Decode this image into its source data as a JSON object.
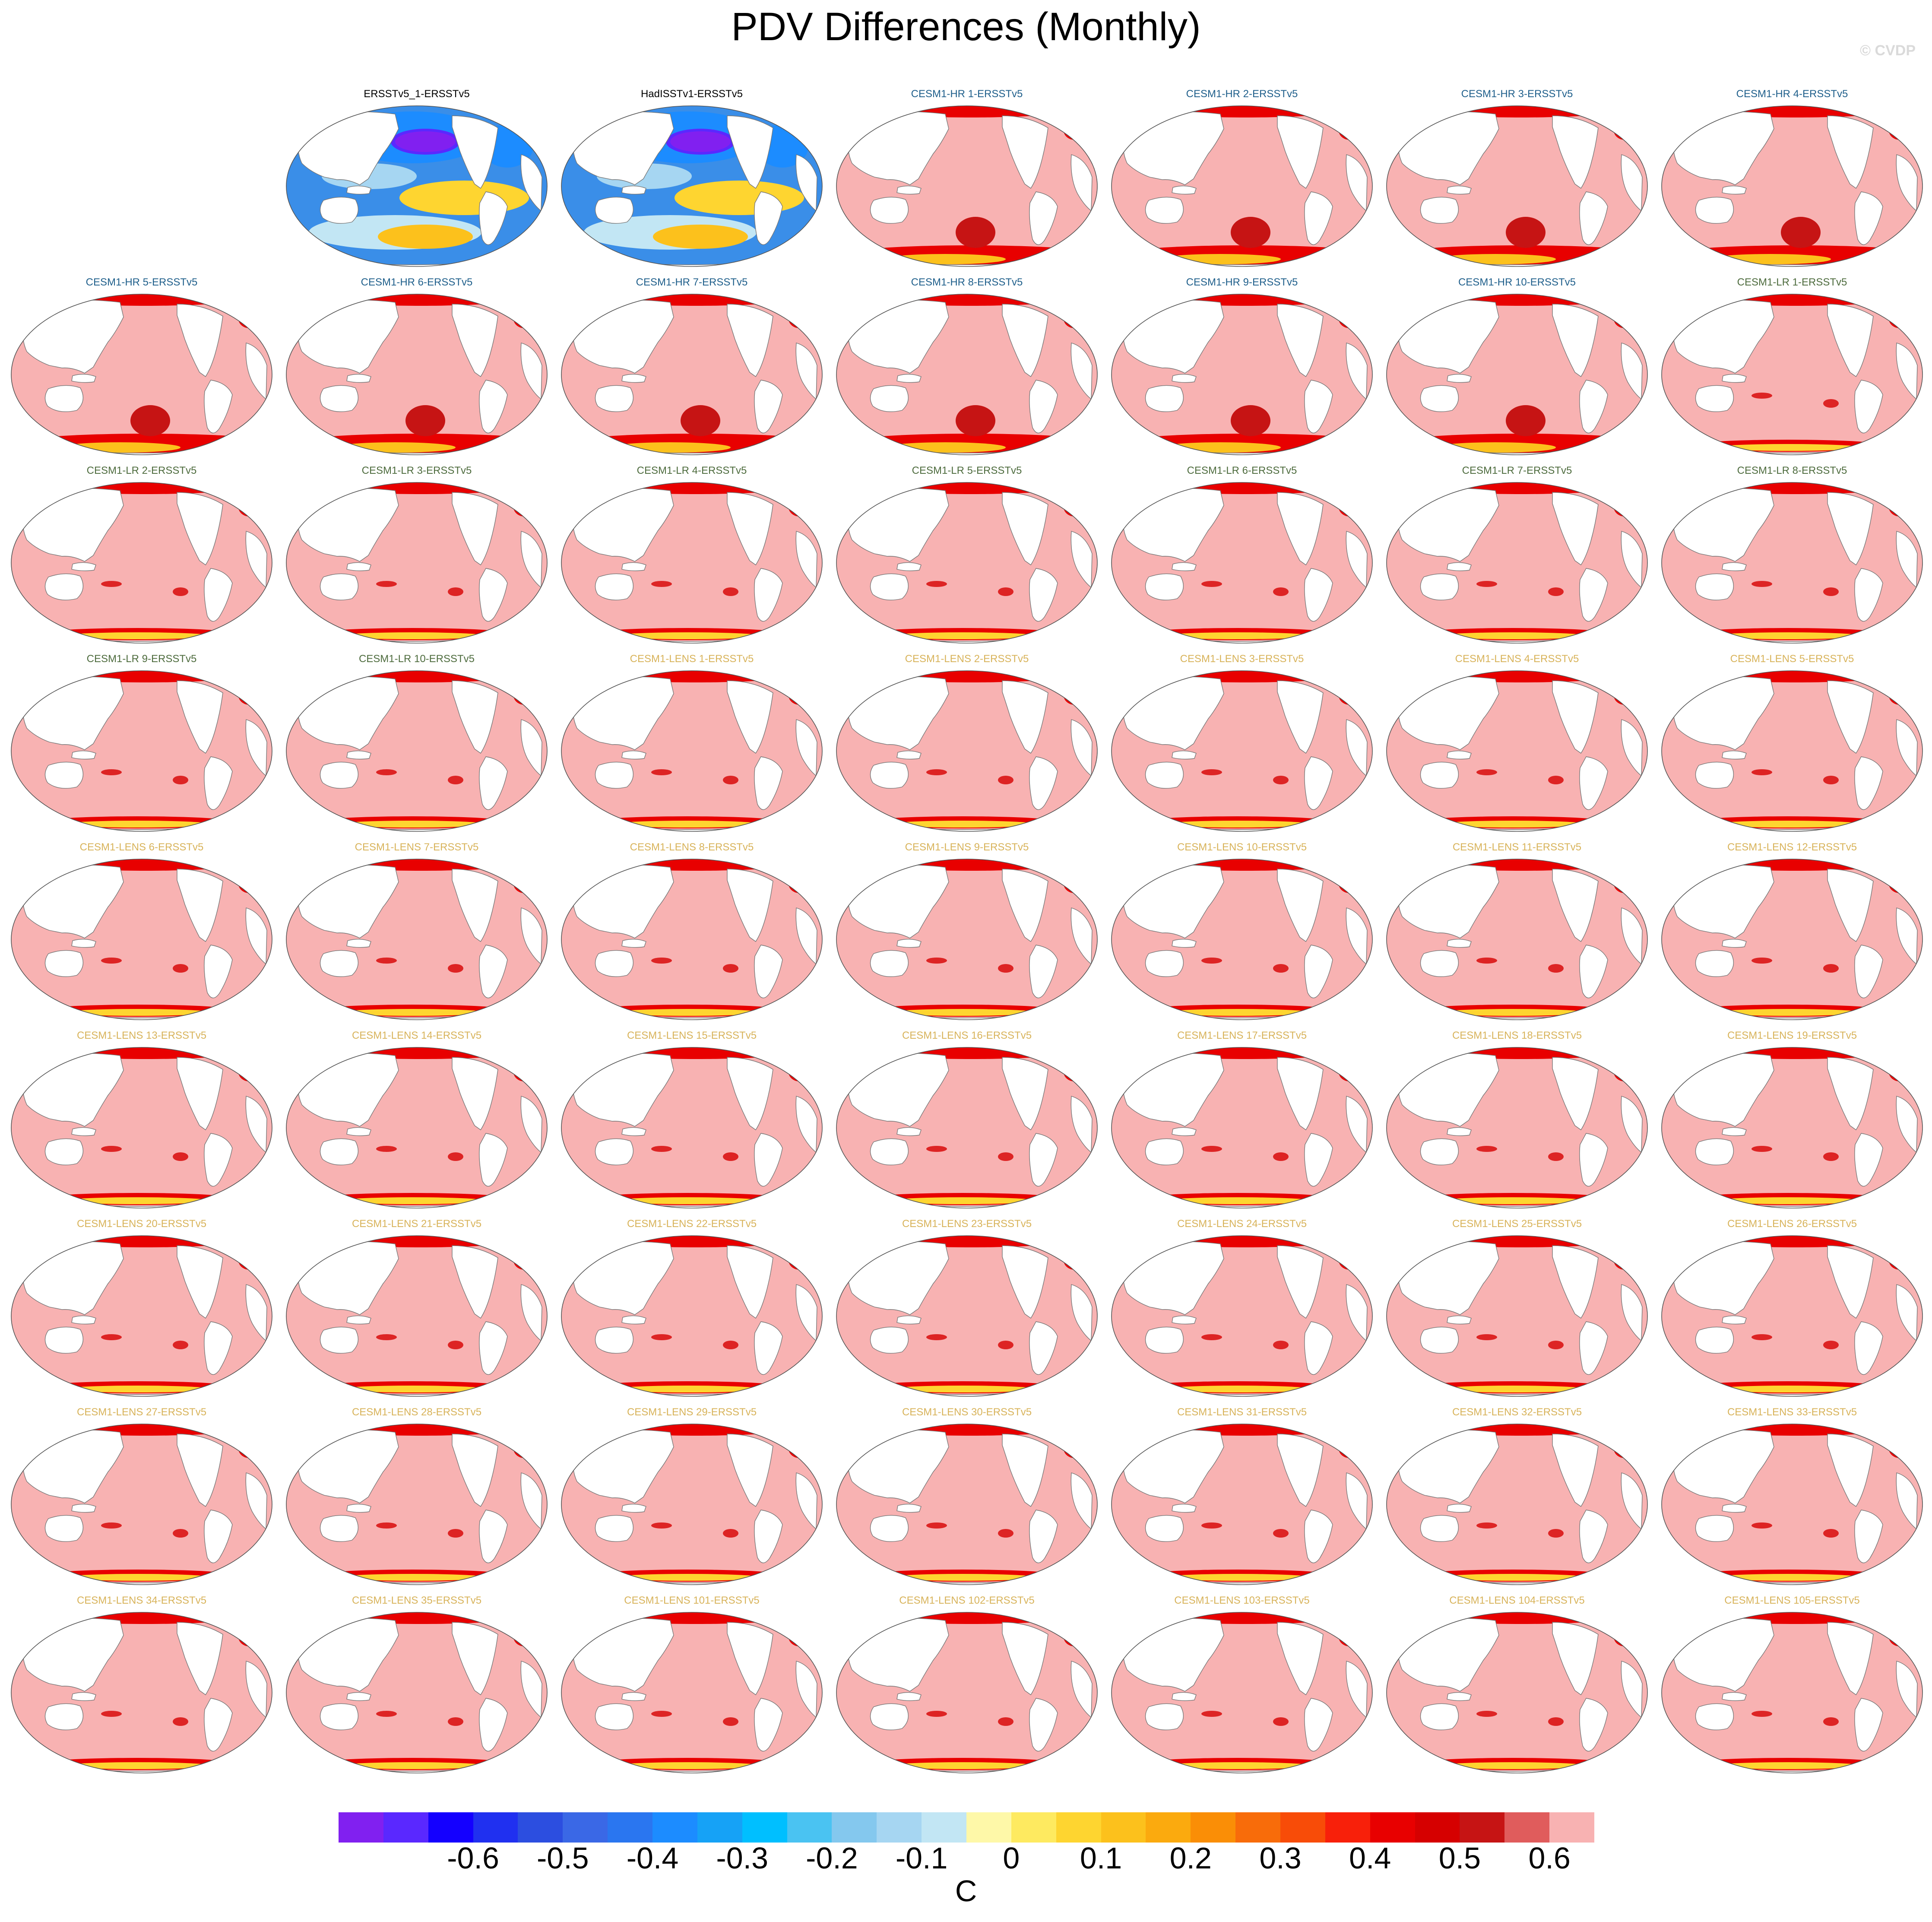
{
  "page": {
    "title": "PDV Differences (Monthly)",
    "credit": "© CVDP"
  },
  "colors": {
    "obs": "#000000",
    "hr": "#1f5f8b",
    "lr": "#4d6b3d",
    "lens": "#d8b35a"
  },
  "panels": [
    {
      "label": "ERSSTv5_1-ERSSTv5",
      "group": "obs"
    },
    {
      "label": "HadISSTv1-ERSSTv5",
      "group": "obs"
    },
    {
      "label": "CESM1-HR 1-ERSSTv5",
      "group": "hr"
    },
    {
      "label": "CESM1-HR 2-ERSSTv5",
      "group": "hr"
    },
    {
      "label": "CESM1-HR 3-ERSSTv5",
      "group": "hr"
    },
    {
      "label": "CESM1-HR 4-ERSSTv5",
      "group": "hr"
    },
    {
      "label": "CESM1-HR 5-ERSSTv5",
      "group": "hr"
    },
    {
      "label": "CESM1-HR 6-ERSSTv5",
      "group": "hr"
    },
    {
      "label": "CESM1-HR 7-ERSSTv5",
      "group": "hr"
    },
    {
      "label": "CESM1-HR 8-ERSSTv5",
      "group": "hr"
    },
    {
      "label": "CESM1-HR 9-ERSSTv5",
      "group": "hr"
    },
    {
      "label": "CESM1-HR 10-ERSSTv5",
      "group": "hr"
    },
    {
      "label": "CESM1-LR 1-ERSSTv5",
      "group": "lr"
    },
    {
      "label": "CESM1-LR 2-ERSSTv5",
      "group": "lr"
    },
    {
      "label": "CESM1-LR 3-ERSSTv5",
      "group": "lr"
    },
    {
      "label": "CESM1-LR 4-ERSSTv5",
      "group": "lr"
    },
    {
      "label": "CESM1-LR 5-ERSSTv5",
      "group": "lr"
    },
    {
      "label": "CESM1-LR 6-ERSSTv5",
      "group": "lr"
    },
    {
      "label": "CESM1-LR 7-ERSSTv5",
      "group": "lr"
    },
    {
      "label": "CESM1-LR 8-ERSSTv5",
      "group": "lr"
    },
    {
      "label": "CESM1-LR 9-ERSSTv5",
      "group": "lr"
    },
    {
      "label": "CESM1-LR 10-ERSSTv5",
      "group": "lr"
    },
    {
      "label": "CESM1-LENS 1-ERSSTv5",
      "group": "lens"
    },
    {
      "label": "CESM1-LENS 2-ERSSTv5",
      "group": "lens"
    },
    {
      "label": "CESM1-LENS 3-ERSSTv5",
      "group": "lens"
    },
    {
      "label": "CESM1-LENS 4-ERSSTv5",
      "group": "lens"
    },
    {
      "label": "CESM1-LENS 5-ERSSTv5",
      "group": "lens"
    },
    {
      "label": "CESM1-LENS 6-ERSSTv5",
      "group": "lens"
    },
    {
      "label": "CESM1-LENS 7-ERSSTv5",
      "group": "lens"
    },
    {
      "label": "CESM1-LENS 8-ERSSTv5",
      "group": "lens"
    },
    {
      "label": "CESM1-LENS 9-ERSSTv5",
      "group": "lens"
    },
    {
      "label": "CESM1-LENS 10-ERSSTv5",
      "group": "lens"
    },
    {
      "label": "CESM1-LENS 11-ERSSTv5",
      "group": "lens"
    },
    {
      "label": "CESM1-LENS 12-ERSSTv5",
      "group": "lens"
    },
    {
      "label": "CESM1-LENS 13-ERSSTv5",
      "group": "lens"
    },
    {
      "label": "CESM1-LENS 14-ERSSTv5",
      "group": "lens"
    },
    {
      "label": "CESM1-LENS 15-ERSSTv5",
      "group": "lens"
    },
    {
      "label": "CESM1-LENS 16-ERSSTv5",
      "group": "lens"
    },
    {
      "label": "CESM1-LENS 17-ERSSTv5",
      "group": "lens"
    },
    {
      "label": "CESM1-LENS 18-ERSSTv5",
      "group": "lens"
    },
    {
      "label": "CESM1-LENS 19-ERSSTv5",
      "group": "lens"
    },
    {
      "label": "CESM1-LENS 20-ERSSTv5",
      "group": "lens"
    },
    {
      "label": "CESM1-LENS 21-ERSSTv5",
      "group": "lens"
    },
    {
      "label": "CESM1-LENS 22-ERSSTv5",
      "group": "lens"
    },
    {
      "label": "CESM1-LENS 23-ERSSTv5",
      "group": "lens"
    },
    {
      "label": "CESM1-LENS 24-ERSSTv5",
      "group": "lens"
    },
    {
      "label": "CESM1-LENS 25-ERSSTv5",
      "group": "lens"
    },
    {
      "label": "CESM1-LENS 26-ERSSTv5",
      "group": "lens"
    },
    {
      "label": "CESM1-LENS 27-ERSSTv5",
      "group": "lens"
    },
    {
      "label": "CESM1-LENS 28-ERSSTv5",
      "group": "lens"
    },
    {
      "label": "CESM1-LENS 29-ERSSTv5",
      "group": "lens"
    },
    {
      "label": "CESM1-LENS 30-ERSSTv5",
      "group": "lens"
    },
    {
      "label": "CESM1-LENS 31-ERSSTv5",
      "group": "lens"
    },
    {
      "label": "CESM1-LENS 32-ERSSTv5",
      "group": "lens"
    },
    {
      "label": "CESM1-LENS 33-ERSSTv5",
      "group": "lens"
    },
    {
      "label": "CESM1-LENS 34-ERSSTv5",
      "group": "lens"
    },
    {
      "label": "CESM1-LENS 35-ERSSTv5",
      "group": "lens"
    },
    {
      "label": "CESM1-LENS 101-ERSSTv5",
      "group": "lens"
    },
    {
      "label": "CESM1-LENS 102-ERSSTv5",
      "group": "lens"
    },
    {
      "label": "CESM1-LENS 103-ERSSTv5",
      "group": "lens"
    },
    {
      "label": "CESM1-LENS 104-ERSSTv5",
      "group": "lens"
    },
    {
      "label": "CESM1-LENS 105-ERSSTv5",
      "group": "lens"
    }
  ],
  "colorbar": {
    "unit": "C",
    "colors": [
      "#8120f0",
      "#5a28ff",
      "#1400ff",
      "#2030f0",
      "#2c4ee0",
      "#3a68e6",
      "#2a76f0",
      "#1c8cff",
      "#16a2f6",
      "#00bfff",
      "#4ac3f2",
      "#84c8ee",
      "#a6d6f2",
      "#c2e6f4",
      "#fef8a8",
      "#feea60",
      "#fed530",
      "#fcc11c",
      "#fbaa0e",
      "#fa8e06",
      "#f86c0a",
      "#f84c08",
      "#f8200a",
      "#e80000",
      "#d60000",
      "#c61414",
      "#e05c5c",
      "#f8b2b2"
    ],
    "ticks": [
      "-0.6",
      "-0.5",
      "-0.4",
      "-0.3",
      "-0.2",
      "-0.1",
      "0",
      "0.1",
      "0.2",
      "0.3",
      "0.4",
      "0.5",
      "0.6"
    ]
  }
}
